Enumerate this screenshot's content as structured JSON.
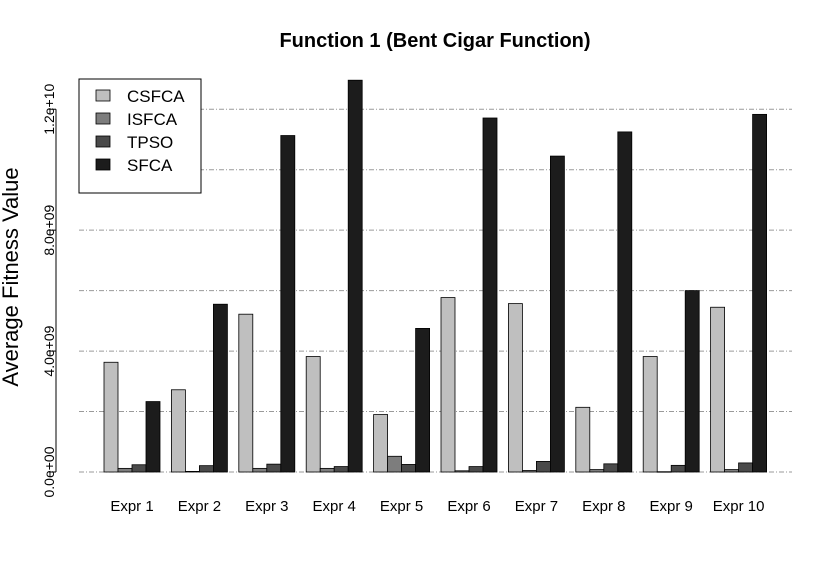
{
  "chart_data": {
    "type": "bar",
    "title": "Function 1 (Bent Cigar Function)",
    "xlabel": "",
    "ylabel": "Average Fitness Value",
    "categories": [
      "Expr 1",
      "Expr 2",
      "Expr 3",
      "Expr 4",
      "Expr 5",
      "Expr 6",
      "Expr 7",
      "Expr 8",
      "Expr 9",
      "Expr 10"
    ],
    "series": [
      {
        "name": "CSFCA",
        "color": "#bfbfbf",
        "values": [
          3630000000.0,
          2720000000.0,
          5220000000.0,
          3820000000.0,
          1900000000.0,
          5770000000.0,
          5570000000.0,
          2140000000.0,
          3820000000.0,
          5450000000.0
        ]
      },
      {
        "name": "ISFCA",
        "color": "#7d7d7d",
        "values": [
          120000000.0,
          20000000.0,
          120000000.0,
          120000000.0,
          520000000.0,
          40000000.0,
          50000000.0,
          80000000.0,
          10000000.0,
          80000000.0
        ]
      },
      {
        "name": "TPSO",
        "color": "#4a4a4a",
        "values": [
          240000000.0,
          210000000.0,
          260000000.0,
          180000000.0,
          250000000.0,
          180000000.0,
          350000000.0,
          270000000.0,
          220000000.0,
          300000000.0
        ]
      },
      {
        "name": "SFCA",
        "color": "#1c1c1c",
        "values": [
          2330000000.0,
          5550000000.0,
          11130000000.0,
          12960000000.0,
          4750000000.0,
          11710000000.0,
          10450000000.0,
          11250000000.0,
          6000000000.0,
          11830000000.0
        ]
      }
    ],
    "ylim": [
      0,
      13000000000.0
    ],
    "yticks": [
      {
        "value": 0,
        "label": "0.0e+00"
      },
      {
        "value": 4000000000.0,
        "label": "4.0e+09"
      },
      {
        "value": 8000000000.0,
        "label": "8.0e+09"
      },
      {
        "value": 12000000000.0,
        "label": "1.2e+10"
      }
    ],
    "gridlines": [
      0,
      2000000000.0,
      4000000000.0,
      6000000000.0,
      8000000000.0,
      10000000000.0,
      12000000000.0
    ],
    "grid": true,
    "legend_position": "top-left"
  }
}
